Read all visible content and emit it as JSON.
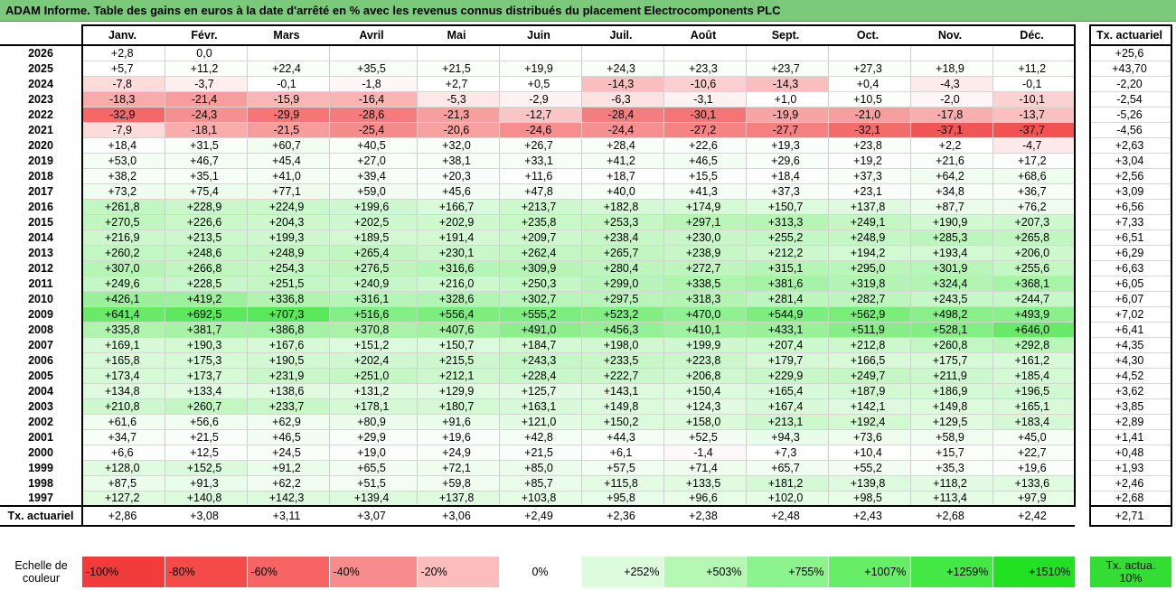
{
  "title": "ADAM Informe. Table des gains en euros à la date d'arrêté en % avec les revenus connus distribués du placement Electrocomponents PLC",
  "months": [
    "Janv.",
    "Févr.",
    "Mars",
    "Avril",
    "Mai",
    "Juin",
    "Juil.",
    "Août",
    "Sept.",
    "Oct.",
    "Nov.",
    "Déc."
  ],
  "actuarial_header": "Tx. actuariel",
  "rows": [
    {
      "year": "2026",
      "values": [
        "+2,8",
        "0,0",
        "",
        "",
        "",
        "",
        "",
        "",
        "",
        "",
        "",
        ""
      ],
      "act": "+25,6"
    },
    {
      "year": "2025",
      "values": [
        "+5,7",
        "+11,2",
        "+22,4",
        "+35,5",
        "+21,5",
        "+19,9",
        "+24,3",
        "+23,3",
        "+23,7",
        "+27,3",
        "+18,9",
        "+11,2"
      ],
      "act": "+43,70"
    },
    {
      "year": "2024",
      "values": [
        "-7,8",
        "-3,7",
        "-0,1",
        "-1,8",
        "+2,7",
        "+0,5",
        "-14,3",
        "-10,6",
        "-14,3",
        "+0,4",
        "-4,3",
        "-0,1"
      ],
      "act": "-2,20"
    },
    {
      "year": "2023",
      "values": [
        "-18,3",
        "-21,4",
        "-15,9",
        "-16,4",
        "-5,3",
        "-2,9",
        "-6,3",
        "-3,1",
        "+1,0",
        "+10,5",
        "-2,0",
        "-10,1"
      ],
      "act": "-2,54"
    },
    {
      "year": "2022",
      "values": [
        "-32,9",
        "-24,3",
        "-29,9",
        "-28,6",
        "-21,3",
        "-12,7",
        "-28,4",
        "-30,1",
        "-19,9",
        "-21,0",
        "-17,8",
        "-13,7"
      ],
      "act": "-5,26"
    },
    {
      "year": "2021",
      "values": [
        "-7,9",
        "-18,1",
        "-21,5",
        "-25,4",
        "-20,6",
        "-24,6",
        "-24,4",
        "-27,2",
        "-27,7",
        "-32,1",
        "-37,1",
        "-37,7"
      ],
      "act": "-4,56"
    },
    {
      "year": "2020",
      "values": [
        "+18,4",
        "+31,5",
        "+60,7",
        "+40,5",
        "+32,0",
        "+26,7",
        "+28,4",
        "+22,6",
        "+19,3",
        "+23,8",
        "+2,2",
        "-4,7"
      ],
      "act": "+2,63"
    },
    {
      "year": "2019",
      "values": [
        "+53,0",
        "+46,7",
        "+45,4",
        "+27,0",
        "+38,1",
        "+33,1",
        "+41,2",
        "+46,5",
        "+29,6",
        "+19,2",
        "+21,6",
        "+17,2"
      ],
      "act": "+3,04"
    },
    {
      "year": "2018",
      "values": [
        "+38,2",
        "+35,1",
        "+41,0",
        "+39,4",
        "+20,3",
        "+11,6",
        "+18,7",
        "+15,5",
        "+18,4",
        "+37,3",
        "+64,2",
        "+68,6"
      ],
      "act": "+2,56"
    },
    {
      "year": "2017",
      "values": [
        "+73,2",
        "+75,4",
        "+77,1",
        "+59,0",
        "+45,6",
        "+47,8",
        "+40,0",
        "+41,3",
        "+37,3",
        "+23,1",
        "+34,8",
        "+36,7"
      ],
      "act": "+3,09"
    },
    {
      "year": "2016",
      "values": [
        "+261,8",
        "+228,9",
        "+224,9",
        "+199,6",
        "+166,7",
        "+213,7",
        "+182,8",
        "+174,9",
        "+150,7",
        "+137,8",
        "+87,7",
        "+76,2"
      ],
      "act": "+6,56"
    },
    {
      "year": "2015",
      "values": [
        "+270,5",
        "+226,6",
        "+204,3",
        "+202,5",
        "+202,9",
        "+235,8",
        "+253,3",
        "+297,1",
        "+313,3",
        "+249,1",
        "+190,9",
        "+207,3"
      ],
      "act": "+7,33"
    },
    {
      "year": "2014",
      "values": [
        "+216,9",
        "+213,5",
        "+199,3",
        "+189,5",
        "+191,4",
        "+209,7",
        "+238,4",
        "+230,0",
        "+255,2",
        "+248,9",
        "+285,3",
        "+265,8"
      ],
      "act": "+6,51"
    },
    {
      "year": "2013",
      "values": [
        "+260,2",
        "+248,6",
        "+248,9",
        "+265,4",
        "+230,1",
        "+262,4",
        "+265,7",
        "+238,9",
        "+212,2",
        "+194,2",
        "+193,4",
        "+206,0"
      ],
      "act": "+6,29"
    },
    {
      "year": "2012",
      "values": [
        "+307,0",
        "+266,8",
        "+254,3",
        "+276,5",
        "+316,6",
        "+309,9",
        "+280,4",
        "+272,7",
        "+315,1",
        "+295,0",
        "+301,9",
        "+255,6"
      ],
      "act": "+6,63"
    },
    {
      "year": "2011",
      "values": [
        "+249,6",
        "+228,5",
        "+251,5",
        "+240,9",
        "+216,0",
        "+250,3",
        "+299,0",
        "+338,5",
        "+381,6",
        "+319,8",
        "+324,4",
        "+368,1"
      ],
      "act": "+6,05"
    },
    {
      "year": "2010",
      "values": [
        "+426,1",
        "+419,2",
        "+336,8",
        "+316,1",
        "+328,6",
        "+302,7",
        "+297,5",
        "+318,3",
        "+281,4",
        "+282,7",
        "+243,5",
        "+244,7"
      ],
      "act": "+6,07"
    },
    {
      "year": "2009",
      "values": [
        "+641,4",
        "+692,5",
        "+707,3",
        "+516,6",
        "+556,4",
        "+555,2",
        "+523,2",
        "+470,0",
        "+544,9",
        "+562,9",
        "+498,2",
        "+493,9"
      ],
      "act": "+7,02"
    },
    {
      "year": "2008",
      "values": [
        "+335,8",
        "+381,7",
        "+386,8",
        "+370,8",
        "+407,6",
        "+491,0",
        "+456,3",
        "+410,1",
        "+433,1",
        "+511,9",
        "+528,1",
        "+646,0"
      ],
      "act": "+6,41"
    },
    {
      "year": "2007",
      "values": [
        "+169,1",
        "+190,3",
        "+167,6",
        "+151,2",
        "+150,7",
        "+184,7",
        "+198,0",
        "+199,9",
        "+207,4",
        "+212,8",
        "+260,8",
        "+292,8"
      ],
      "act": "+4,35"
    },
    {
      "year": "2006",
      "values": [
        "+165,8",
        "+175,3",
        "+190,5",
        "+202,4",
        "+215,5",
        "+243,3",
        "+233,5",
        "+223,8",
        "+179,7",
        "+166,5",
        "+175,7",
        "+161,2"
      ],
      "act": "+4,30"
    },
    {
      "year": "2005",
      "values": [
        "+173,4",
        "+173,7",
        "+231,9",
        "+251,0",
        "+212,1",
        "+228,4",
        "+222,7",
        "+206,8",
        "+229,9",
        "+249,7",
        "+211,9",
        "+185,4"
      ],
      "act": "+4,52"
    },
    {
      "year": "2004",
      "values": [
        "+134,8",
        "+133,4",
        "+138,6",
        "+131,2",
        "+129,9",
        "+125,7",
        "+143,1",
        "+150,4",
        "+165,4",
        "+187,9",
        "+186,9",
        "+196,5"
      ],
      "act": "+3,62"
    },
    {
      "year": "2003",
      "values": [
        "+210,8",
        "+260,7",
        "+233,7",
        "+178,1",
        "+180,7",
        "+163,1",
        "+149,8",
        "+124,3",
        "+167,4",
        "+142,1",
        "+149,8",
        "+165,1"
      ],
      "act": "+3,85"
    },
    {
      "year": "2002",
      "values": [
        "+61,6",
        "+56,6",
        "+62,9",
        "+80,9",
        "+91,6",
        "+121,0",
        "+150,2",
        "+158,0",
        "+213,1",
        "+192,4",
        "+129,5",
        "+183,4"
      ],
      "act": "+2,89"
    },
    {
      "year": "2001",
      "values": [
        "+34,7",
        "+21,5",
        "+46,5",
        "+29,9",
        "+19,6",
        "+42,8",
        "+44,3",
        "+52,5",
        "+94,3",
        "+73,6",
        "+58,9",
        "+45,0"
      ],
      "act": "+1,41"
    },
    {
      "year": "2000",
      "values": [
        "+6,6",
        "+12,5",
        "+24,5",
        "+19,0",
        "+24,9",
        "+21,5",
        "+6,1",
        "-1,4",
        "+7,3",
        "+10,4",
        "+15,7",
        "+22,7"
      ],
      "act": "+0,48"
    },
    {
      "year": "1999",
      "values": [
        "+128,0",
        "+152,5",
        "+91,2",
        "+65,5",
        "+72,1",
        "+85,0",
        "+57,5",
        "+71,4",
        "+65,7",
        "+55,2",
        "+35,3",
        "+19,6"
      ],
      "act": "+1,93"
    },
    {
      "year": "1998",
      "values": [
        "+87,5",
        "+91,3",
        "+62,2",
        "+51,5",
        "+59,8",
        "+85,7",
        "+115,8",
        "+133,5",
        "+181,2",
        "+139,8",
        "+118,2",
        "+133,6"
      ],
      "act": "+2,46"
    },
    {
      "year": "1997",
      "values": [
        "+127,2",
        "+140,8",
        "+142,3",
        "+139,4",
        "+137,8",
        "+103,8",
        "+95,8",
        "+96,6",
        "+102,0",
        "+98,5",
        "+113,4",
        "+97,9"
      ],
      "act": "+2,68"
    }
  ],
  "totals": {
    "label": "Tx. actuariel",
    "values": [
      "+2,86",
      "+3,08",
      "+3,11",
      "+3,07",
      "+3,06",
      "+2,49",
      "+2,36",
      "+2,38",
      "+2,48",
      "+2,43",
      "+2,68",
      "+2,42"
    ],
    "act": "+2,71"
  },
  "legend": {
    "label": "Echelle de couleur",
    "swatches": [
      {
        "text": "-100%",
        "color": "#f23b3b"
      },
      {
        "text": "-80%",
        "color": "#f44a4a"
      },
      {
        "text": "-60%",
        "color": "#f66464"
      },
      {
        "text": "-40%",
        "color": "#f88c8c"
      },
      {
        "text": "-20%",
        "color": "#fbbcbc"
      },
      {
        "text": "0%",
        "color": "#ffffff"
      },
      {
        "text": "+252%",
        "color": "#dcfcdc"
      },
      {
        "text": "+503%",
        "color": "#b4f8b4"
      },
      {
        "text": "+755%",
        "color": "#8cf48c"
      },
      {
        "text": "+1007%",
        "color": "#66ee66"
      },
      {
        "text": "+1259%",
        "color": "#44e844"
      },
      {
        "text": "+1510%",
        "color": "#22e022"
      }
    ],
    "actuarial": "Tx. actua. 10%"
  },
  "colors": {
    "title_bg": "#7bc97b",
    "neg_max": "#f23b3b",
    "pos_max": "#22e022"
  }
}
